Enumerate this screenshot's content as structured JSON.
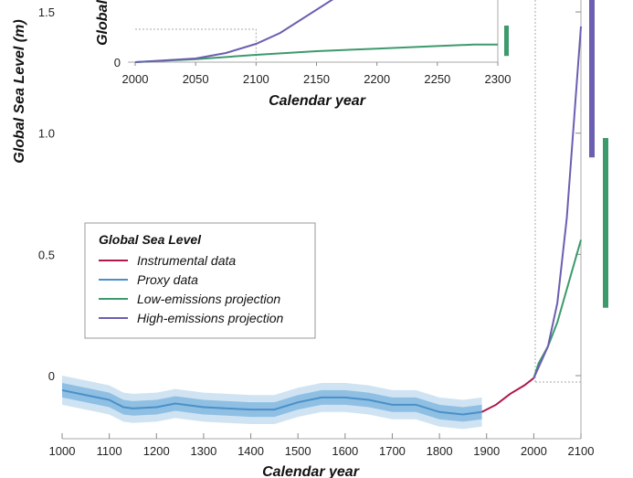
{
  "chart_data": {
    "type": "line",
    "main": {
      "xlabel": "Calendar year",
      "ylabel": "Global Sea Level (m)",
      "xlim": [
        1000,
        2100
      ],
      "ylim": [
        -0.26,
        1.52
      ],
      "xticks": [
        1000,
        1100,
        1200,
        1300,
        1400,
        1500,
        1600,
        1700,
        1800,
        1900,
        2000,
        2100
      ],
      "yticks": [
        0,
        0.5,
        1.0,
        1.5
      ],
      "ytick_labels": [
        "0",
        "0.5",
        "1.0",
        "1.5"
      ],
      "series": [
        {
          "name": "Proxy data",
          "color": "#4a90c8",
          "band": 0.03,
          "x": [
            1000,
            1050,
            1100,
            1130,
            1150,
            1200,
            1240,
            1300,
            1350,
            1400,
            1450,
            1500,
            1550,
            1600,
            1650,
            1700,
            1750,
            1800,
            1850,
            1890
          ],
          "y": [
            -0.06,
            -0.08,
            -0.1,
            -0.13,
            -0.135,
            -0.13,
            -0.115,
            -0.13,
            -0.135,
            -0.14,
            -0.14,
            -0.11,
            -0.09,
            -0.09,
            -0.1,
            -0.12,
            -0.12,
            -0.15,
            -0.16,
            -0.15
          ]
        },
        {
          "name": "Instrumental data",
          "color": "#b0174a",
          "x": [
            1890,
            1920,
            1950,
            1980,
            2000
          ],
          "y": [
            -0.15,
            -0.12,
            -0.075,
            -0.04,
            -0.01
          ]
        },
        {
          "name": "Low-emissions projection",
          "color": "#3d9a6c",
          "x": [
            2000,
            2010,
            2030,
            2050,
            2100
          ],
          "y": [
            -0.01,
            0.05,
            0.12,
            0.22,
            0.56
          ]
        },
        {
          "name": "High-emissions projection",
          "color": "#6a5fb0",
          "x": [
            2000,
            2030,
            2050,
            2070,
            2100
          ],
          "y": [
            -0.01,
            0.12,
            0.3,
            0.65,
            1.44
          ]
        }
      ],
      "ranges_2100": [
        {
          "name": "High-emissions range",
          "color": "#6a5fb0",
          "low": 0.9,
          "high": 1.6
        },
        {
          "name": "Low-emissions range",
          "color": "#3d9a6c",
          "low": 0.28,
          "high": 0.98
        }
      ]
    },
    "inset": {
      "xlabel": "Calendar year",
      "ylabel": "Global",
      "xlim": [
        2000,
        2300
      ],
      "xticks": [
        2000,
        2050,
        2100,
        2150,
        2200,
        2250,
        2300
      ],
      "ytick_labels": [
        "0"
      ],
      "series": [
        {
          "name": "Low-emissions projection",
          "color": "#3d9a6c",
          "x": [
            2000,
            2050,
            2100,
            2150,
            2200,
            2250,
            2280,
            2300
          ],
          "y": [
            0,
            0.08,
            0.2,
            0.3,
            0.37,
            0.44,
            0.48,
            0.48
          ]
        },
        {
          "name": "High-emissions projection",
          "color": "#6a5fb0",
          "x": [
            2000,
            2050,
            2075,
            2100,
            2120,
            2165
          ],
          "y": [
            0,
            0.1,
            0.25,
            0.5,
            0.8,
            1.75
          ]
        }
      ],
      "range_2300": {
        "color": "#3d9a6c",
        "low": 0.17,
        "high": 1.0
      }
    },
    "legend": {
      "title": "Global Sea Level",
      "placement": "center-left",
      "items": [
        "Instrumental data",
        "Proxy data",
        "Low-emissions projection",
        "High-emissions projection"
      ]
    }
  }
}
